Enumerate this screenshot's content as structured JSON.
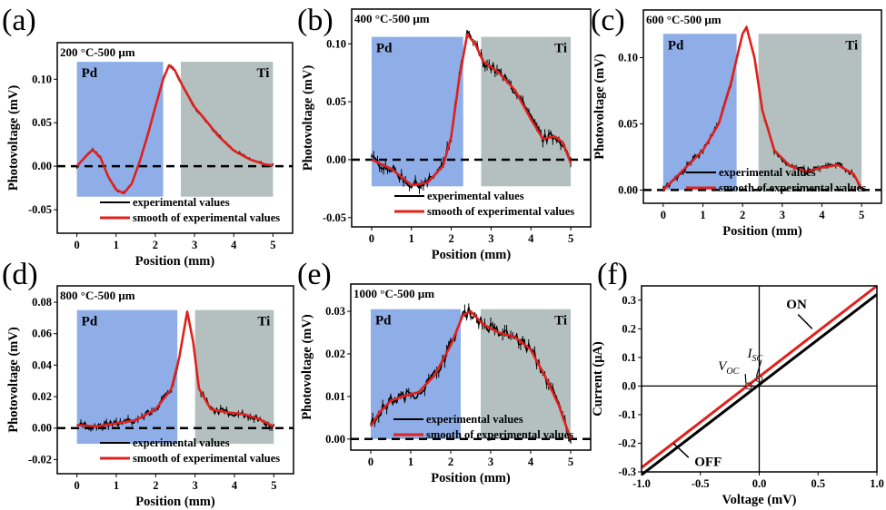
{
  "chart_data": [
    {
      "panel_label": "(a)",
      "type": "line",
      "title": "200 °C-500 μm",
      "xlabel": "Position (mm)",
      "ylabel": "Photovoltage (mV)",
      "xlim": [
        -0.5,
        5.5
      ],
      "ylim": [
        -0.077,
        0.142
      ],
      "xticks": [
        0,
        1,
        2,
        3,
        4,
        5
      ],
      "yticks": [
        -0.05,
        0.0,
        0.05,
        0.1
      ],
      "ytick_labels": [
        "-0.05",
        "0.00",
        "0.05",
        "0.10"
      ],
      "regions": [
        {
          "label": "Pd",
          "x": [
            0,
            2.2
          ],
          "y": [
            -0.035,
            0.12
          ],
          "color": "#8faee8"
        },
        {
          "label": "Ti",
          "x": [
            2.65,
            5
          ],
          "y": [
            -0.035,
            0.12
          ],
          "color": "#b4c0c0"
        }
      ],
      "legend": [
        "experimental values",
        "smooth of experimental values"
      ],
      "legend_colors": [
        "#000000",
        "#e0201c"
      ],
      "x": [
        0,
        0.2,
        0.4,
        0.6,
        0.8,
        1.0,
        1.2,
        1.4,
        1.6,
        1.8,
        2.0,
        2.2,
        2.35,
        2.5,
        2.7,
        3.0,
        3.3,
        3.6,
        4.0,
        4.4,
        4.8,
        5.0
      ],
      "smooth": [
        0,
        0.01,
        0.019,
        0.01,
        -0.012,
        -0.027,
        -0.031,
        -0.02,
        0.005,
        0.035,
        0.068,
        0.1,
        0.116,
        0.11,
        0.092,
        0.068,
        0.052,
        0.035,
        0.018,
        0.008,
        0.002,
        0.001
      ]
    },
    {
      "panel_label": "(b)",
      "type": "line",
      "title": "400 °C-500 μm",
      "xlabel": "Position (mm)",
      "ylabel": "Photovoltage (mV)",
      "xlim": [
        -0.5,
        5.5
      ],
      "ylim": [
        -0.058,
        0.13
      ],
      "xticks": [
        0,
        1,
        2,
        3,
        4,
        5
      ],
      "yticks": [
        -0.05,
        0.0,
        0.05,
        0.1
      ],
      "ytick_labels": [
        "-0.05",
        "0.00",
        "0.05",
        "0.10"
      ],
      "regions": [
        {
          "label": "Pd",
          "x": [
            0,
            2.3
          ],
          "y": [
            -0.023,
            0.106
          ],
          "color": "#8faee8"
        },
        {
          "label": "Ti",
          "x": [
            2.75,
            5
          ],
          "y": [
            -0.023,
            0.106
          ],
          "color": "#b4c0c0"
        }
      ],
      "legend": [
        "experimental values",
        "smooth of experimental values"
      ],
      "legend_colors": [
        "#000000",
        "#e0201c"
      ],
      "x": [
        0,
        0.5,
        1.0,
        1.4,
        1.8,
        2.0,
        2.2,
        2.4,
        2.6,
        2.8,
        3.2,
        3.6,
        4.0,
        4.3,
        4.6,
        4.8,
        5.0
      ],
      "smooth": [
        0,
        -0.008,
        -0.022,
        -0.02,
        -0.005,
        0.02,
        0.07,
        0.108,
        0.1,
        0.085,
        0.075,
        0.06,
        0.035,
        0.018,
        0.02,
        0.015,
        -0.003
      ]
    },
    {
      "panel_label": "(c)",
      "type": "line",
      "title": "600 °C-500 μm",
      "xlabel": "Position (mm)",
      "ylabel": "Photovoltage (mV)",
      "xlim": [
        -0.5,
        5.5
      ],
      "ylim": [
        -0.01,
        0.136
      ],
      "xticks": [
        0,
        1,
        2,
        3,
        4,
        5
      ],
      "yticks": [
        0.0,
        0.05,
        0.1
      ],
      "ytick_labels": [
        "0.00",
        "0.05",
        "0.10"
      ],
      "regions": [
        {
          "label": "Pd",
          "x": [
            0,
            1.85
          ],
          "y": [
            0,
            0.118
          ],
          "color": "#8faee8"
        },
        {
          "label": "Ti",
          "x": [
            2.4,
            5
          ],
          "y": [
            0,
            0.118
          ],
          "color": "#b4c0c0"
        }
      ],
      "legend": [
        "experimental values",
        "smooth of experimental values"
      ],
      "legend_colors": [
        "#000000",
        "#e0201c"
      ],
      "x": [
        0,
        0.5,
        1.0,
        1.4,
        1.7,
        2.0,
        2.1,
        2.3,
        2.5,
        2.8,
        3.2,
        3.6,
        4.0,
        4.4,
        4.8,
        5.0
      ],
      "smooth": [
        0,
        0.015,
        0.03,
        0.05,
        0.08,
        0.118,
        0.123,
        0.1,
        0.06,
        0.03,
        0.018,
        0.014,
        0.017,
        0.019,
        0.012,
        0.001
      ]
    },
    {
      "panel_label": "(d)",
      "type": "line",
      "title": "800 °C-500 μm",
      "xlabel": "Position (mm)",
      "ylabel": "Photovoltage (mV)",
      "xlim": [
        -0.5,
        5.5
      ],
      "ylim": [
        -0.029,
        0.0904
      ],
      "xticks": [
        0,
        1,
        2,
        3,
        4,
        5
      ],
      "yticks": [
        -0.02,
        0.0,
        0.02,
        0.04,
        0.06,
        0.08
      ],
      "ytick_labels": [
        "-0.02",
        "0.00",
        "0.02",
        "0.04",
        "0.06",
        "0.08"
      ],
      "regions": [
        {
          "label": "Pd",
          "x": [
            0,
            2.55
          ],
          "y": [
            -0.01,
            0.075
          ],
          "color": "#8faee8"
        },
        {
          "label": "Ti",
          "x": [
            3.0,
            5
          ],
          "y": [
            -0.01,
            0.075
          ],
          "color": "#b4c0c0"
        }
      ],
      "legend": [
        "experimental values",
        "smooth of experimental values"
      ],
      "legend_colors": [
        "#000000",
        "#e0201c"
      ],
      "x": [
        0,
        0.5,
        1.0,
        1.5,
        2.0,
        2.4,
        2.6,
        2.8,
        2.95,
        3.1,
        3.4,
        3.8,
        4.2,
        4.6,
        5.0
      ],
      "smooth": [
        0.002,
        0.001,
        0.003,
        0.005,
        0.012,
        0.025,
        0.045,
        0.074,
        0.055,
        0.025,
        0.012,
        0.01,
        0.009,
        0.006,
        0.001
      ]
    },
    {
      "panel_label": "(e)",
      "type": "line",
      "title": "1000 °C-500 μm",
      "xlabel": "Position (mm)",
      "ylabel": "Photovoltage (mV)",
      "xlim": [
        -0.5,
        5.5
      ],
      "ylim": [
        -0.0026,
        0.0364
      ],
      "xticks": [
        0,
        1,
        2,
        3,
        4,
        5
      ],
      "yticks": [
        0.0,
        0.01,
        0.02,
        0.03
      ],
      "ytick_labels": [
        "0.00",
        "0.01",
        "0.02",
        "0.03"
      ],
      "regions": [
        {
          "label": "Pd",
          "x": [
            0,
            2.25
          ],
          "y": [
            0,
            0.0305
          ],
          "color": "#8faee8"
        },
        {
          "label": "Ti",
          "x": [
            2.75,
            5
          ],
          "y": [
            0,
            0.0305
          ],
          "color": "#b4c0c0"
        }
      ],
      "legend": [
        "experimental values",
        "smooth of experimental values"
      ],
      "legend_colors": [
        "#000000",
        "#e0201c"
      ],
      "x": [
        0,
        0.2,
        0.5,
        0.8,
        1.2,
        1.6,
        2.0,
        2.3,
        2.5,
        2.8,
        3.2,
        3.6,
        4.0,
        4.4,
        4.7,
        5.0
      ],
      "smooth": [
        0.003,
        0.006,
        0.009,
        0.01,
        0.011,
        0.015,
        0.022,
        0.029,
        0.03,
        0.027,
        0.025,
        0.024,
        0.021,
        0.014,
        0.008,
        0
      ]
    },
    {
      "panel_label": "(f)",
      "type": "line",
      "xlabel": "Voltage (mV)",
      "ylabel": "Current (μA)",
      "xlim": [
        -1,
        1
      ],
      "ylim": [
        -0.3,
        0.35
      ],
      "xticks": [
        -1,
        -0.5,
        0,
        0.5,
        1
      ],
      "xtick_labels": [
        "-1.0",
        "-0.5",
        "0.0",
        "0.5",
        "1.0"
      ],
      "yticks": [
        -0.3,
        -0.2,
        -0.1,
        0,
        0.1,
        0.2,
        0.3
      ],
      "ytick_labels": [
        "-0.3",
        "-0.2",
        "-0.1",
        "0.0",
        "0.1",
        "0.2",
        "0.3"
      ],
      "series": [
        {
          "name": "ON",
          "color": "#e0201c",
          "x": [
            -1,
            1
          ],
          "y": [
            -0.285,
            0.35
          ]
        },
        {
          "name": "OFF",
          "color": "#000000",
          "x": [
            -1,
            1
          ],
          "y": [
            -0.31,
            0.32
          ]
        }
      ],
      "annotations": [
        {
          "text": "V",
          "sub": "OC",
          "x": -0.09,
          "y": 0
        },
        {
          "text": "I",
          "sub": "SC",
          "x": 0,
          "y": 0.025
        }
      ]
    }
  ]
}
